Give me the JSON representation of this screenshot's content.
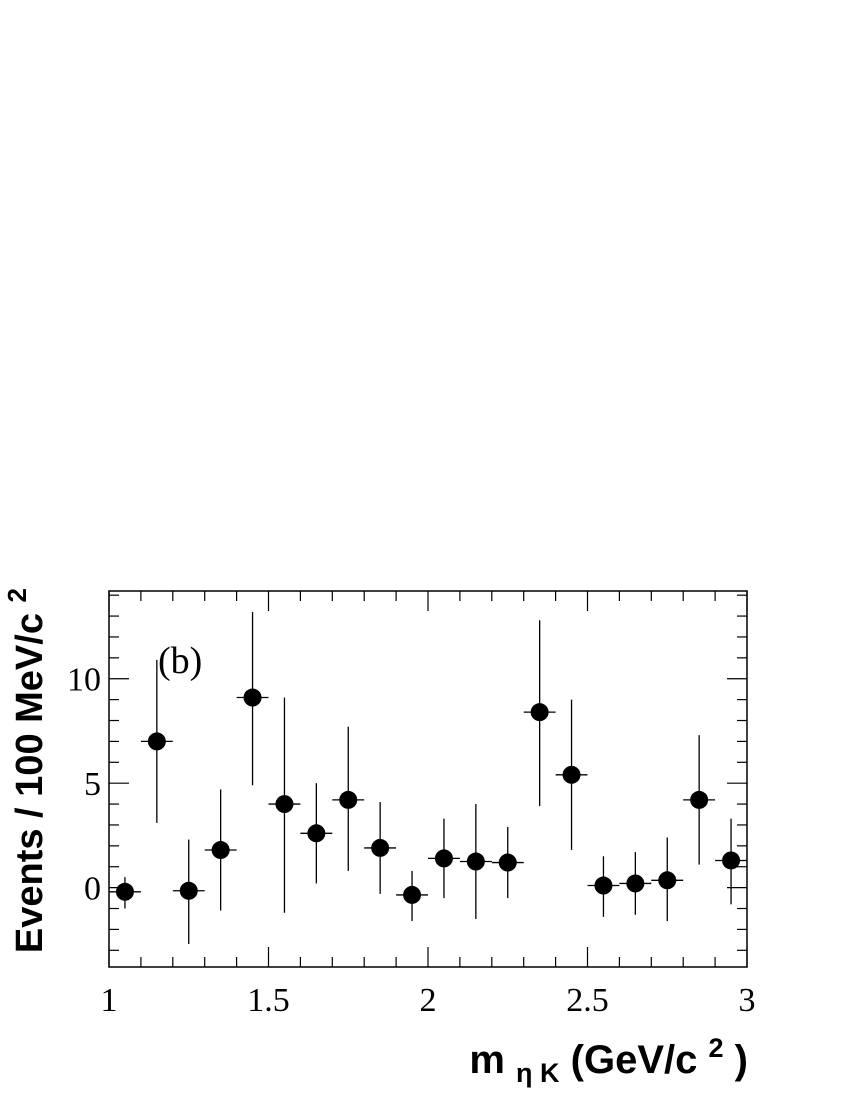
{
  "chart_data": {
    "type": "scatter",
    "panel_label": "(b)",
    "xlabel": {
      "main": "m",
      "sub": "η K",
      "unit_pre": " (GeV/c",
      "unit_sup": "2",
      "unit_post": ")"
    },
    "ylabel": {
      "main": "Events / 100 MeV/c",
      "sup": "2"
    },
    "xlim": [
      1,
      3
    ],
    "ylim": [
      -3.8,
      14.2
    ],
    "x_ticks": [
      {
        "value": 1,
        "label": "1"
      },
      {
        "value": 1.5,
        "label": "1.5"
      },
      {
        "value": 2,
        "label": "2"
      },
      {
        "value": 2.5,
        "label": "2.5"
      },
      {
        "value": 3,
        "label": "3"
      }
    ],
    "y_ticks": [
      {
        "value": 0,
        "label": "0"
      },
      {
        "value": 5,
        "label": "5"
      },
      {
        "value": 10,
        "label": "10"
      }
    ],
    "bin_half_width": 0.05,
    "points": [
      {
        "x": 1.05,
        "y": -0.2,
        "lo": -1.0,
        "hi": 0.5
      },
      {
        "x": 1.15,
        "y": 7.0,
        "lo": 3.1,
        "hi": 10.9
      },
      {
        "x": 1.25,
        "y": -0.15,
        "lo": -2.7,
        "hi": 2.3
      },
      {
        "x": 1.35,
        "y": 1.8,
        "lo": -1.1,
        "hi": 4.7
      },
      {
        "x": 1.45,
        "y": 9.1,
        "lo": 4.9,
        "hi": 13.2
      },
      {
        "x": 1.55,
        "y": 4.0,
        "lo": -1.2,
        "hi": 9.1
      },
      {
        "x": 1.65,
        "y": 2.6,
        "lo": 0.2,
        "hi": 5.0
      },
      {
        "x": 1.75,
        "y": 4.2,
        "lo": 0.8,
        "hi": 7.7
      },
      {
        "x": 1.85,
        "y": 1.9,
        "lo": -0.3,
        "hi": 4.1
      },
      {
        "x": 1.95,
        "y": -0.35,
        "lo": -1.6,
        "hi": 0.8
      },
      {
        "x": 2.05,
        "y": 1.4,
        "lo": -0.5,
        "hi": 3.3
      },
      {
        "x": 2.15,
        "y": 1.25,
        "lo": -1.5,
        "hi": 4.0
      },
      {
        "x": 2.25,
        "y": 1.2,
        "lo": -0.5,
        "hi": 2.9
      },
      {
        "x": 2.35,
        "y": 8.4,
        "lo": 3.9,
        "hi": 12.8
      },
      {
        "x": 2.45,
        "y": 5.4,
        "lo": 1.8,
        "hi": 9.0
      },
      {
        "x": 2.55,
        "y": 0.1,
        "lo": -1.4,
        "hi": 1.5
      },
      {
        "x": 2.65,
        "y": 0.2,
        "lo": -1.3,
        "hi": 1.7
      },
      {
        "x": 2.75,
        "y": 0.35,
        "lo": -1.6,
        "hi": 2.4
      },
      {
        "x": 2.85,
        "y": 4.2,
        "lo": 1.1,
        "hi": 7.3
      },
      {
        "x": 2.95,
        "y": 1.3,
        "lo": -0.8,
        "hi": 3.3
      }
    ]
  }
}
